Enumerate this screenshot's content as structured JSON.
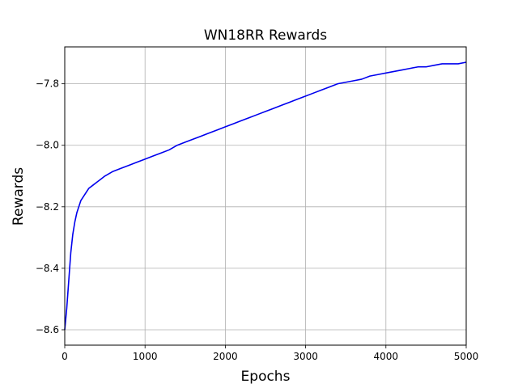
{
  "chart_data": {
    "type": "line",
    "title": "WN18RR Rewards",
    "xlabel": "Epochs",
    "ylabel": "Rewards",
    "xlim": [
      0,
      5000
    ],
    "ylim": [
      -8.65,
      -7.68
    ],
    "xticks": [
      0,
      1000,
      2000,
      3000,
      4000,
      5000
    ],
    "xtick_labels": [
      "0",
      "1000",
      "2000",
      "3000",
      "4000",
      "5000"
    ],
    "yticks": [
      -8.6,
      -8.4,
      -8.2,
      -8.0,
      -7.8
    ],
    "ytick_labels": [
      "−8.6",
      "−8.4",
      "−8.2",
      "−8.0",
      "−7.8"
    ],
    "grid": true,
    "series": [
      {
        "color": "#0000ee",
        "x": [
          0,
          25,
          50,
          75,
          100,
          125,
          150,
          175,
          200,
          250,
          300,
          350,
          400,
          450,
          500,
          600,
          700,
          800,
          900,
          1000,
          1100,
          1200,
          1300,
          1400,
          1500,
          1600,
          1700,
          1800,
          1900,
          2000,
          2100,
          2200,
          2300,
          2400,
          2500,
          2600,
          2700,
          2800,
          2900,
          3000,
          3100,
          3200,
          3300,
          3400,
          3500,
          3600,
          3700,
          3800,
          3900,
          4000,
          4100,
          4200,
          4300,
          4400,
          4500,
          4600,
          4700,
          4800,
          4900,
          5000
        ],
        "y": [
          -8.6,
          -8.53,
          -8.44,
          -8.35,
          -8.29,
          -8.25,
          -8.22,
          -8.2,
          -8.18,
          -8.16,
          -8.14,
          -8.13,
          -8.12,
          -8.11,
          -8.1,
          -8.085,
          -8.075,
          -8.065,
          -8.055,
          -8.045,
          -8.035,
          -8.025,
          -8.015,
          -8.0,
          -7.99,
          -7.98,
          -7.97,
          -7.96,
          -7.95,
          -7.94,
          -7.93,
          -7.92,
          -7.91,
          -7.9,
          -7.89,
          -7.88,
          -7.87,
          -7.86,
          -7.85,
          -7.84,
          -7.83,
          -7.82,
          -7.81,
          -7.8,
          -7.795,
          -7.79,
          -7.785,
          -7.775,
          -7.77,
          -7.765,
          -7.76,
          -7.755,
          -7.75,
          -7.745,
          -7.745,
          -7.74,
          -7.735,
          -7.735,
          -7.735,
          -7.73
        ]
      }
    ]
  }
}
